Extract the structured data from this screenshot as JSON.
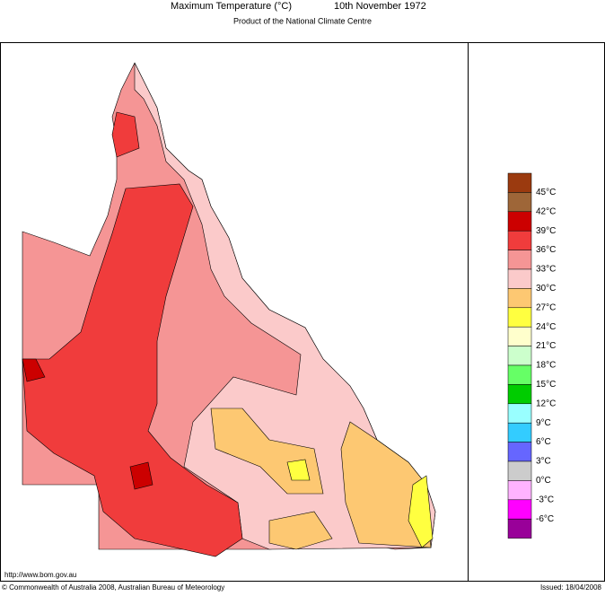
{
  "header": {
    "title": "Maximum Temperature (°C)",
    "date": "10th November 1972",
    "subtitle": "Product of the National Climate Centre"
  },
  "legend": {
    "items": [
      {
        "color": "#9b3a0f",
        "label": "45°C"
      },
      {
        "color": "#9e6638",
        "label": "42°C"
      },
      {
        "color": "#cc0000",
        "label": "39°C"
      },
      {
        "color": "#f03c3c",
        "label": "36°C"
      },
      {
        "color": "#f59595",
        "label": "33°C"
      },
      {
        "color": "#fbcaca",
        "label": "30°C"
      },
      {
        "color": "#fdc872",
        "label": "27°C"
      },
      {
        "color": "#ffff40",
        "label": "24°C"
      },
      {
        "color": "#ffffcc",
        "label": "21°C"
      },
      {
        "color": "#ccffcc",
        "label": "18°C"
      },
      {
        "color": "#66ff66",
        "label": "15°C"
      },
      {
        "color": "#00cc00",
        "label": "12°C"
      },
      {
        "color": "#99ffff",
        "label": "9°C"
      },
      {
        "color": "#33ccff",
        "label": "6°C"
      },
      {
        "color": "#6666ff",
        "label": "3°C"
      },
      {
        "color": "#cccccc",
        "label": "0°C"
      },
      {
        "color": "#ffb3ff",
        "label": "-3°C"
      },
      {
        "color": "#ff00ff",
        "label": "-6°C"
      },
      {
        "color": "#990099"
      }
    ]
  },
  "footer": {
    "url": "http://www.bom.gov.au",
    "copyright": "© Commonwealth of Australia 2008, Australian Bureau of Meteorology",
    "issued": "Issued: 18/04/2008"
  }
}
